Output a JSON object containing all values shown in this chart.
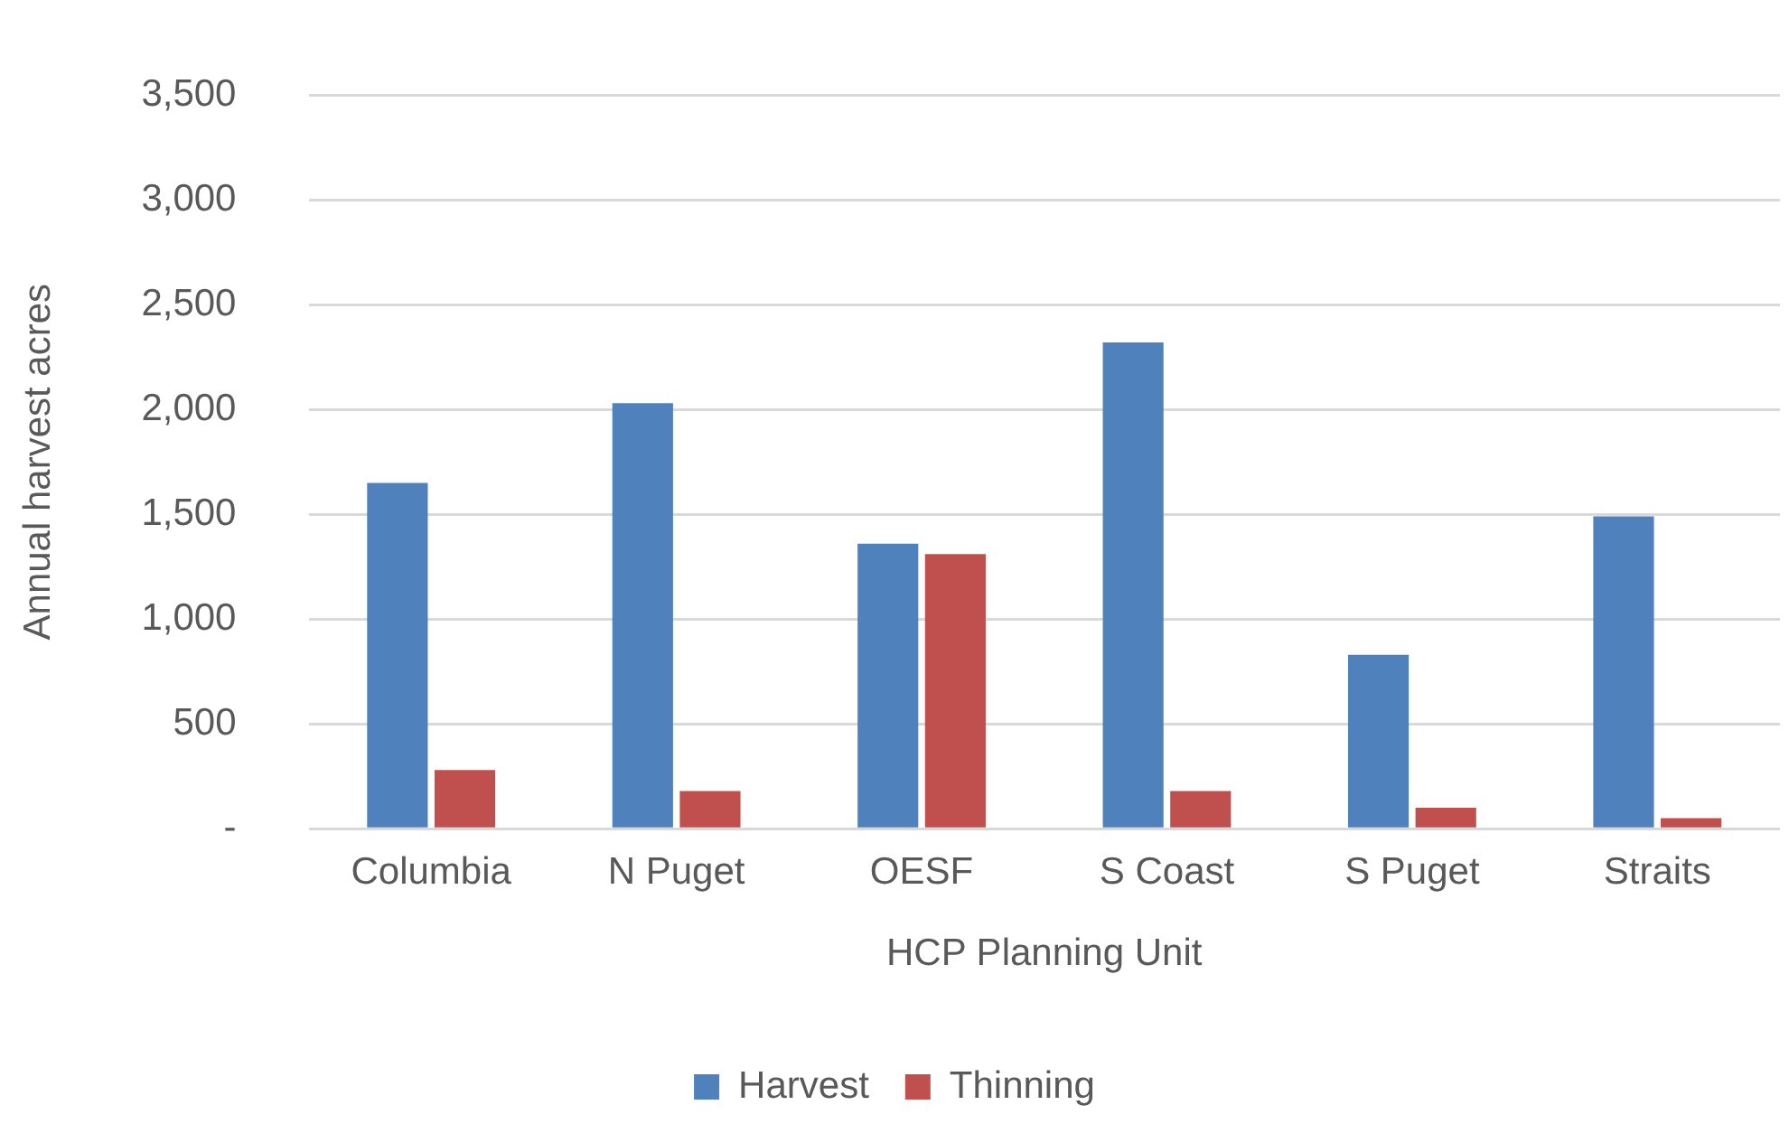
{
  "chart_data": {
    "type": "bar",
    "xlabel": "HCP Planning Unit",
    "ylabel": "Annual harvest acres",
    "categories": [
      "Columbia",
      "N Puget",
      "OESF",
      "S Coast",
      "S Puget",
      "Straits"
    ],
    "series": [
      {
        "name": "Harvest",
        "color": "#4f81bd",
        "values": [
          1650,
          2030,
          1360,
          2320,
          830,
          1490
        ]
      },
      {
        "name": "Thinning",
        "color": "#c0504d",
        "values": [
          280,
          180,
          1310,
          180,
          100,
          50
        ]
      }
    ],
    "ylim": [
      0,
      3500
    ],
    "yticks": [
      {
        "value": 0,
        "label": "-"
      },
      {
        "value": 500,
        "label": "500"
      },
      {
        "value": 1000,
        "label": "1,000"
      },
      {
        "value": 1500,
        "label": "1,500"
      },
      {
        "value": 2000,
        "label": "2,000"
      },
      {
        "value": 2500,
        "label": "2,500"
      },
      {
        "value": 3000,
        "label": "3,000"
      },
      {
        "value": 3500,
        "label": "3,500"
      }
    ],
    "grid": "y",
    "legend": "bottom"
  }
}
